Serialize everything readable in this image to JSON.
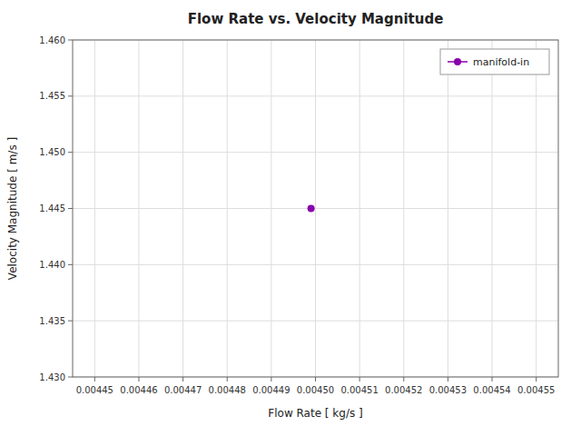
{
  "chart_data": {
    "type": "line",
    "title": "Flow Rate vs. Velocity Magnitude",
    "xlabel": "Flow Rate [ kg/s ]",
    "ylabel": "Velocity Magnitude [ m/s ]",
    "x": [
      0.004499
    ],
    "series": [
      {
        "name": "manifold-in",
        "color": "#8800aa",
        "marker": "circle",
        "values": [
          1.445
        ]
      }
    ],
    "xlim": [
      0.004445,
      0.004555
    ],
    "ylim": [
      1.43,
      1.46
    ],
    "xticks": [
      0.00445,
      0.00446,
      0.00447,
      0.00448,
      0.00449,
      {
        "value": 0.0045,
        "label": "0.00450"
      },
      0.00451,
      0.00452,
      0.00453,
      0.00454,
      0.00455
    ],
    "yticks": [
      {
        "value": 1.43,
        "label": "1.430"
      },
      1.435,
      {
        "value": 1.44,
        "label": "1.440"
      },
      1.445,
      {
        "value": 1.45,
        "label": "1.450"
      },
      1.455,
      {
        "value": 1.46,
        "label": "1.460"
      }
    ],
    "grid": true,
    "legend": "upper right"
  }
}
